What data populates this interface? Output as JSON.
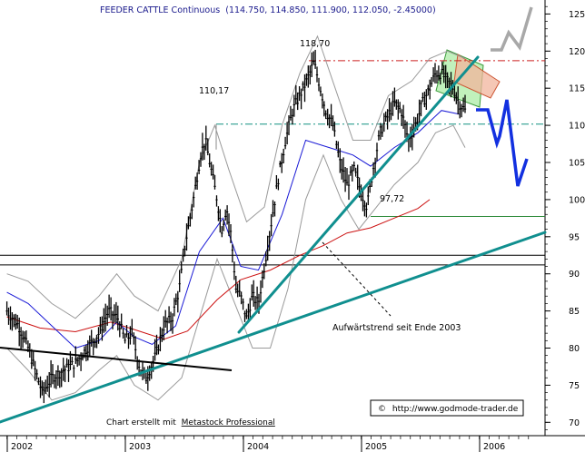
{
  "chart_data": {
    "type": "candlestick",
    "title": "FEEDER CATTLE Continuous",
    "title_values": "(114.750, 114.850, 111.900, 112.050, -2.45000)",
    "price_labels": [
      "118,70",
      "110,17",
      "97,72"
    ],
    "annotation": "Aufwärtstrend seit Ende 2003",
    "credit_prefix": "Chart erstellt mit",
    "credit_software": "Metastock Professional",
    "watermark_symbol": "©",
    "watermark": "http://www.godmode-trader.de",
    "y_ticks": [
      "125",
      "120",
      "115",
      "110",
      "105",
      "100",
      "95",
      "90",
      "85",
      "80",
      "75",
      "70"
    ],
    "x_ticks": [
      "2002",
      "2003",
      "2004",
      "2005",
      "2006"
    ],
    "ylim": [
      67,
      127
    ],
    "x": [
      2001.9,
      2006.4
    ],
    "grid": false,
    "colors": {
      "price": "#000000",
      "bands": "#9a9a9a",
      "ma_blue": "#1a1ad6",
      "ma_red": "#cc1111",
      "trend_teal": "#108f8f",
      "resistance_dash": "#cc2222",
      "support_dash": "#109080",
      "forecast_blue": "#1230e0",
      "forecast_gray": "#a8a8a8",
      "channel_green": "#b6eeb0",
      "channel_red": "#f1b49c"
    },
    "levels": [
      118.7,
      110.17,
      97.72,
      92.5,
      91.2
    ],
    "ma_red": [
      [
        2001.92,
        84.2
      ],
      [
        2002.2,
        82.7
      ],
      [
        2002.5,
        82.2
      ],
      [
        2002.8,
        83.5
      ],
      [
        2003.0,
        82.5
      ],
      [
        2003.25,
        81.2
      ],
      [
        2003.45,
        82.3
      ],
      [
        2003.7,
        86.5
      ],
      [
        2003.9,
        89.2
      ],
      [
        2004.15,
        90.5
      ],
      [
        2004.4,
        92.5
      ],
      [
        2004.6,
        93.8
      ],
      [
        2004.8,
        95.5
      ],
      [
        2005.0,
        96.2
      ],
      [
        2005.2,
        97.5
      ],
      [
        2005.4,
        98.8
      ],
      [
        2005.5,
        100.0
      ]
    ],
    "ma_blue": [
      [
        2001.92,
        87.5
      ],
      [
        2002.1,
        86.0
      ],
      [
        2002.3,
        83.0
      ],
      [
        2002.5,
        80.0
      ],
      [
        2002.7,
        81.0
      ],
      [
        2002.85,
        83.5
      ],
      [
        2003.0,
        81.5
      ],
      [
        2003.15,
        80.5
      ],
      [
        2003.35,
        83.0
      ],
      [
        2003.55,
        93.0
      ],
      [
        2003.75,
        97.5
      ],
      [
        2003.9,
        91.0
      ],
      [
        2004.05,
        90.5
      ],
      [
        2004.25,
        98.0
      ],
      [
        2004.45,
        108.0
      ],
      [
        2004.65,
        107.0
      ],
      [
        2004.85,
        106.0
      ],
      [
        2005.0,
        104.5
      ],
      [
        2005.2,
        107.0
      ],
      [
        2005.4,
        109.0
      ],
      [
        2005.6,
        112.0
      ],
      [
        2005.75,
        111.5
      ]
    ],
    "close": [
      [
        2001.92,
        85
      ],
      [
        2002.02,
        83
      ],
      [
        2002.1,
        80
      ],
      [
        2002.16,
        77
      ],
      [
        2002.22,
        74
      ],
      [
        2002.3,
        76
      ],
      [
        2002.4,
        77
      ],
      [
        2002.5,
        78
      ],
      [
        2002.6,
        80
      ],
      [
        2002.7,
        82
      ],
      [
        2002.78,
        85
      ],
      [
        2002.86,
        84
      ],
      [
        2002.92,
        81
      ],
      [
        2002.98,
        82
      ],
      [
        2003.05,
        77
      ],
      [
        2003.1,
        76
      ],
      [
        2003.18,
        79
      ],
      [
        2003.25,
        83
      ],
      [
        2003.32,
        84
      ],
      [
        2003.38,
        88
      ],
      [
        2003.43,
        94
      ],
      [
        2003.5,
        100
      ],
      [
        2003.56,
        106
      ],
      [
        2003.6,
        108
      ],
      [
        2003.65,
        104
      ],
      [
        2003.7,
        100
      ],
      [
        2003.74,
        96
      ],
      [
        2003.78,
        99
      ],
      [
        2003.82,
        95
      ],
      [
        2003.86,
        88
      ],
      [
        2003.9,
        87
      ],
      [
        2003.95,
        84
      ],
      [
        2004.0,
        87
      ],
      [
        2004.05,
        86
      ],
      [
        2004.1,
        91
      ],
      [
        2004.16,
        97
      ],
      [
        2004.22,
        103
      ],
      [
        2004.28,
        108
      ],
      [
        2004.34,
        112
      ],
      [
        2004.4,
        114
      ],
      [
        2004.46,
        116
      ],
      [
        2004.52,
        118.5
      ],
      [
        2004.56,
        116
      ],
      [
        2004.62,
        112
      ],
      [
        2004.68,
        110
      ],
      [
        2004.74,
        105
      ],
      [
        2004.8,
        102
      ],
      [
        2004.86,
        104
      ],
      [
        2004.92,
        101
      ],
      [
        2004.97,
        99
      ],
      [
        2005.02,
        104
      ],
      [
        2005.08,
        109
      ],
      [
        2005.14,
        111
      ],
      [
        2005.2,
        113
      ],
      [
        2005.26,
        112
      ],
      [
        2005.32,
        108
      ],
      [
        2005.38,
        110
      ],
      [
        2005.44,
        113
      ],
      [
        2005.5,
        115
      ],
      [
        2005.55,
        117
      ],
      [
        2005.6,
        117
      ],
      [
        2005.65,
        116
      ],
      [
        2005.7,
        115
      ],
      [
        2005.75,
        113
      ],
      [
        2005.8,
        112
      ]
    ],
    "upper_band": [
      [
        2001.92,
        90
      ],
      [
        2002.1,
        89
      ],
      [
        2002.3,
        86
      ],
      [
        2002.5,
        84
      ],
      [
        2002.7,
        87
      ],
      [
        2002.85,
        90
      ],
      [
        2003.0,
        87
      ],
      [
        2003.2,
        85
      ],
      [
        2003.4,
        92
      ],
      [
        2003.55,
        105
      ],
      [
        2003.68,
        110
      ],
      [
        2003.8,
        104
      ],
      [
        2003.95,
        97
      ],
      [
        2004.1,
        99
      ],
      [
        2004.25,
        110
      ],
      [
        2004.4,
        117
      ],
      [
        2004.55,
        122
      ],
      [
        2004.7,
        115
      ],
      [
        2004.85,
        108
      ],
      [
        2005.0,
        108
      ],
      [
        2005.15,
        114
      ],
      [
        2005.35,
        116
      ],
      [
        2005.5,
        119
      ],
      [
        2005.65,
        120
      ],
      [
        2005.8,
        119
      ]
    ],
    "lower_band": [
      [
        2001.92,
        80
      ],
      [
        2002.1,
        77
      ],
      [
        2002.3,
        73
      ],
      [
        2002.5,
        74
      ],
      [
        2002.7,
        77
      ],
      [
        2002.85,
        79
      ],
      [
        2003.0,
        75
      ],
      [
        2003.2,
        73
      ],
      [
        2003.4,
        76
      ],
      [
        2003.55,
        84
      ],
      [
        2003.7,
        92
      ],
      [
        2003.85,
        86
      ],
      [
        2004.0,
        80
      ],
      [
        2004.15,
        80
      ],
      [
        2004.3,
        88
      ],
      [
        2004.45,
        100
      ],
      [
        2004.6,
        106
      ],
      [
        2004.75,
        100
      ],
      [
        2004.9,
        96
      ],
      [
        2005.05,
        99
      ],
      [
        2005.2,
        102
      ],
      [
        2005.4,
        105
      ],
      [
        2005.55,
        109
      ],
      [
        2005.7,
        110
      ],
      [
        2005.8,
        107
      ]
    ]
  }
}
